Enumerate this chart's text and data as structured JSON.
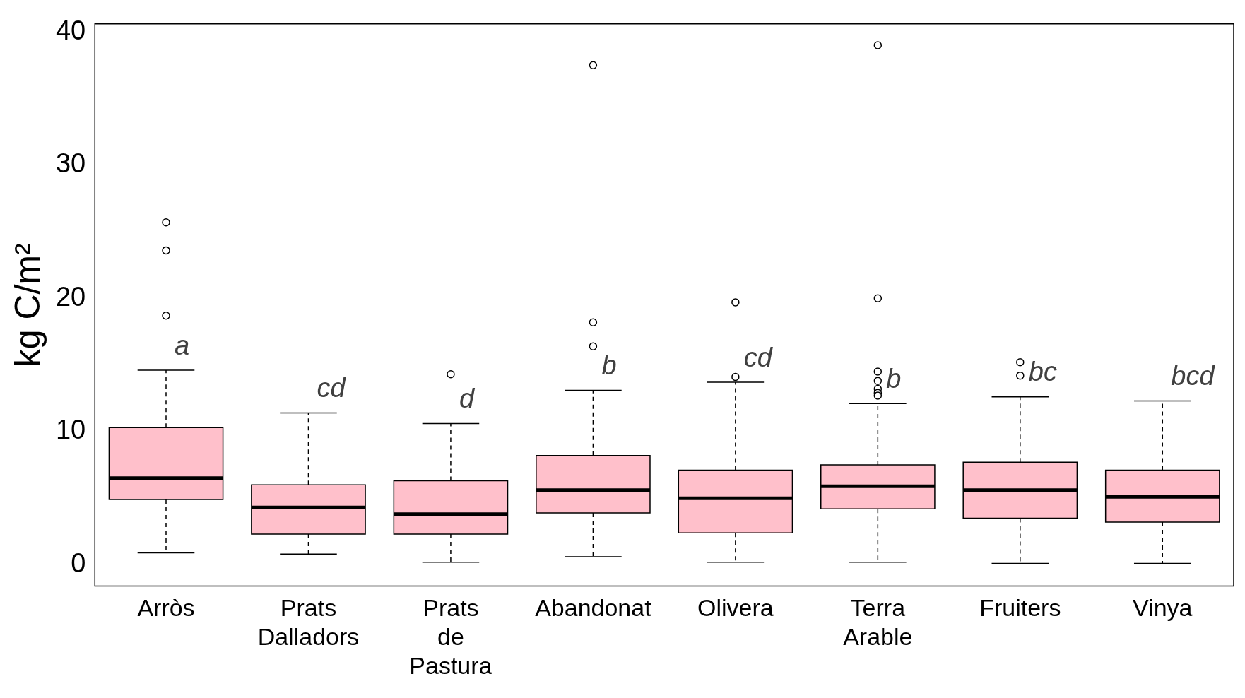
{
  "chart_data": {
    "type": "box",
    "ylabel": "kg C/m²",
    "color": "#ffc0cb",
    "categories": [
      "Arròs",
      "Prats Dalladors",
      "Prats de Pastura",
      "Abandonat",
      "Olivera",
      "Terra Arable",
      "Fruiters",
      "Vinya"
    ],
    "boxes": [
      {
        "low": 0.9,
        "q1": 4.9,
        "median": 6.5,
        "q3": 10.3,
        "high": 14.6,
        "outliers": [
          25.7,
          23.6,
          18.7
        ]
      },
      {
        "low": 0.8,
        "q1": 2.3,
        "median": 4.3,
        "q3": 6.0,
        "high": 11.4
      },
      {
        "low": 0.2,
        "q1": 2.3,
        "median": 3.8,
        "q3": 6.3,
        "high": 10.6,
        "outliers": [
          14.3
        ]
      },
      {
        "low": 0.6,
        "q1": 3.9,
        "median": 5.6,
        "q3": 8.2,
        "high": 13.1,
        "outliers": [
          37.5,
          18.2,
          16.4
        ]
      },
      {
        "low": 0.2,
        "q1": 2.4,
        "median": 5.0,
        "q3": 7.1,
        "high": 13.7,
        "outliers": [
          19.7,
          14.1
        ]
      },
      {
        "low": 0.2,
        "q1": 4.2,
        "median": 5.9,
        "q3": 7.5,
        "high": 12.1,
        "outliers": [
          39.0,
          20.0,
          14.5,
          13.8,
          13.2,
          12.9,
          12.7
        ]
      },
      {
        "low": 0.1,
        "q1": 3.5,
        "median": 5.6,
        "q3": 7.7,
        "high": 12.6,
        "outliers": [
          15.2,
          14.2
        ]
      },
      {
        "low": 0.1,
        "q1": 3.2,
        "median": 5.1,
        "q3": 7.1,
        "high": 12.3
      }
    ],
    "ylim": [
      -1.6,
      40.6
    ],
    "yticks": [
      0,
      10,
      20,
      30,
      40
    ],
    "annotations": [
      "a",
      "cd",
      "d",
      "b",
      "cd",
      "b",
      "bc",
      "bcd"
    ]
  }
}
